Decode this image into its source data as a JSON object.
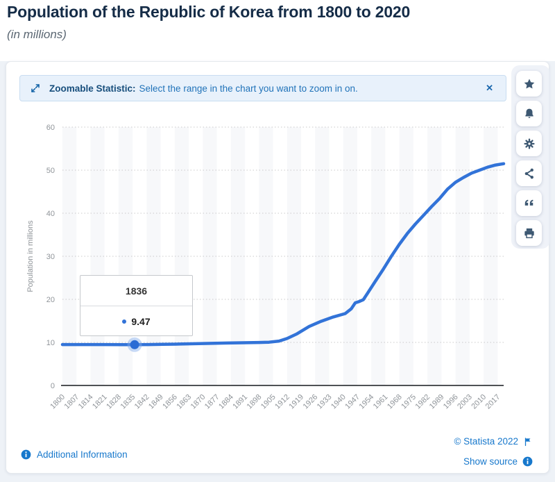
{
  "page": {
    "title": "Population of the Republic of Korea from 1800 to 2020",
    "subtitle": "(in millions)"
  },
  "banner": {
    "icon": "zoom-range-icon",
    "label": "Zoomable Statistic:",
    "message": "Select the range in the chart you want to zoom in on.",
    "close_label": "✕"
  },
  "toolbar": {
    "buttons": [
      "favorite",
      "alerts",
      "settings",
      "share",
      "cite",
      "print"
    ]
  },
  "chart_data": {
    "type": "line",
    "title": "Population of the Republic of Korea from 1800 to 2020",
    "xlabel": "",
    "ylabel": "Population in millions",
    "ylim": [
      0,
      60
    ],
    "yticks": [
      0,
      10,
      20,
      30,
      40,
      50,
      60
    ],
    "x_range": [
      1800,
      2020
    ],
    "xtick_labels": [
      "1800",
      "1807",
      "1814",
      "1821",
      "1828",
      "1835",
      "1842",
      "1849",
      "1856",
      "1863",
      "1870",
      "1877",
      "1884",
      "1891",
      "1898",
      "1905",
      "1912",
      "1919",
      "1926",
      "1933",
      "1940",
      "1947",
      "1954",
      "1961",
      "1968",
      "1975",
      "1982",
      "1989",
      "1996",
      "2003",
      "2010",
      "2017"
    ],
    "grid": "horizontal-dotted",
    "legend": "none",
    "plot_background": "alternating-vertical-bands",
    "series": [
      {
        "name": "Population",
        "color": "#3273d8",
        "points": [
          [
            1800,
            9.5
          ],
          [
            1810,
            9.5
          ],
          [
            1820,
            9.5
          ],
          [
            1830,
            9.48
          ],
          [
            1836,
            9.47
          ],
          [
            1843,
            9.5
          ],
          [
            1850,
            9.55
          ],
          [
            1858,
            9.62
          ],
          [
            1866,
            9.69
          ],
          [
            1874,
            9.77
          ],
          [
            1882,
            9.85
          ],
          [
            1890,
            9.92
          ],
          [
            1898,
            9.99
          ],
          [
            1903,
            10.05
          ],
          [
            1908,
            10.3
          ],
          [
            1912,
            10.9
          ],
          [
            1917,
            12.0
          ],
          [
            1923,
            13.7
          ],
          [
            1929,
            14.9
          ],
          [
            1935,
            15.9
          ],
          [
            1941,
            16.7
          ],
          [
            1944,
            17.8
          ],
          [
            1946,
            19.2
          ],
          [
            1948,
            19.5
          ],
          [
            1950,
            19.9
          ],
          [
            1952,
            21.3
          ],
          [
            1956,
            24.2
          ],
          [
            1960,
            27.0
          ],
          [
            1964,
            30.0
          ],
          [
            1968,
            32.8
          ],
          [
            1972,
            35.3
          ],
          [
            1976,
            37.5
          ],
          [
            1980,
            39.5
          ],
          [
            1984,
            41.5
          ],
          [
            1988,
            43.4
          ],
          [
            1992,
            45.6
          ],
          [
            1996,
            47.2
          ],
          [
            2000,
            48.3
          ],
          [
            2004,
            49.3
          ],
          [
            2008,
            50.0
          ],
          [
            2012,
            50.7
          ],
          [
            2016,
            51.2
          ],
          [
            2020,
            51.5
          ]
        ]
      }
    ],
    "marker": {
      "year": 1836,
      "value": 9.47
    },
    "tooltip": {
      "year": "1836",
      "value": "9.47"
    }
  },
  "footer": {
    "additional_info": "Additional Information",
    "copyright": "© Statista 2022",
    "show_source": "Show source"
  },
  "colors": {
    "line": "#3273d8",
    "marker": "#2a6bd4",
    "marker_halo": "rgba(128,170,235,0.45)",
    "band": "#f7f8fa",
    "gridline": "#c9c9c9",
    "tick_text": "#8f9499",
    "link_blue": "#1778cc",
    "icon_navy": "#3d5872",
    "banner_bg": "#e8f1fb"
  }
}
